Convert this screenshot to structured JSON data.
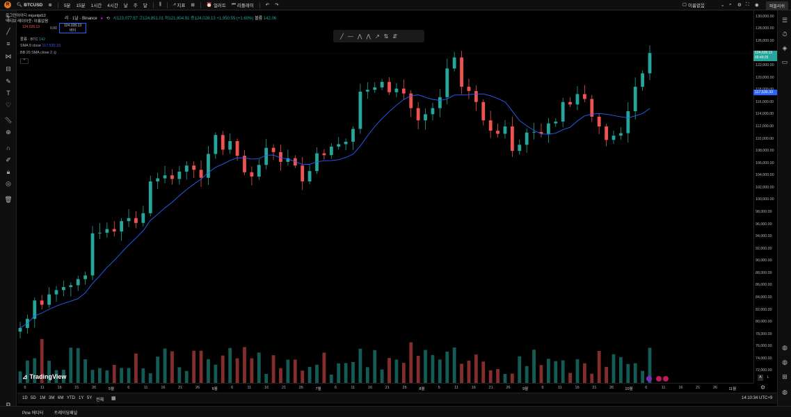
{
  "header": {
    "symbol": "BTCUSD",
    "intervals": [
      "5분",
      "15분",
      "1시간",
      "4시간",
      "날",
      "주",
      "달"
    ],
    "indicators_label": "지표",
    "alert_label": "얼러트",
    "replay_label": "리플레이",
    "layout_name": "이름없음",
    "publish_label": "퍼블리쉬"
  },
  "legend": {
    "line1": "로그인아이디 mijuntjd12",
    "line2": "액티브 레이아웃: 이름없음",
    "price_label": "124,028.13",
    "price_sub": "0.00",
    "price_box": "124,028.13",
    "price_box_sub": "바이"
  },
  "ohlc": {
    "title": "리 · 1날 · Binance",
    "open": "시123,077.57",
    "high": "고124,851.01",
    "low": "저121,804.91",
    "close": "종124,028.13",
    "change": "+1,950.55 (+1.60%)",
    "volume_label": "볼륨",
    "volume": "142.06"
  },
  "indicators": {
    "vol_label": "볼륨 · BTC",
    "vol_value": "142",
    "sma_label": "SMA 9 close",
    "sma_value": "117,530.33",
    "bb_label": "BB 20 SMA close 2"
  },
  "price_axis": {
    "labels": [
      "130,000.00",
      "128,000.00",
      "126,000.00",
      "122,000.00",
      "120,000.00",
      "118,000.00",
      "116,000.00",
      "114,000.00",
      "112,000.00",
      "110,000.00",
      "108,000.00",
      "106,000.00",
      "104,000.00",
      "102,000.00",
      "100,000.00",
      "98,000.00",
      "96,000.00",
      "94,000.00",
      "92,000.00",
      "90,000.00",
      "88,000.00",
      "86,000.00",
      "84,000.00",
      "82,000.00",
      "80,000.00",
      "78,000.00",
      "76,000.00",
      "74,000.00",
      "72,000.00"
    ],
    "last_price": "124,028.13",
    "last_time": "09:49:25",
    "sma_price": "117,530.33"
  },
  "time_axis": {
    "labels": [
      "6",
      "11",
      "16",
      "21",
      "26",
      "5월",
      "6",
      "11",
      "16",
      "21",
      "26",
      "6월",
      "6",
      "11",
      "16",
      "21",
      "26",
      "7월",
      "6",
      "11",
      "16",
      "21",
      "26",
      "8월",
      "6",
      "11",
      "16",
      "21",
      "26",
      "9월",
      "6",
      "11",
      "16",
      "21",
      "26",
      "10월",
      "6",
      "11",
      "16",
      "21",
      "26",
      "11월"
    ]
  },
  "ranges": [
    "1D",
    "5D",
    "1M",
    "3M",
    "6M",
    "YTD",
    "1Y",
    "5Y",
    "전체"
  ],
  "clock": "14:10:34 UTC+9",
  "footer": {
    "tab1": "Pine 에디터",
    "tab2": "트레이딩패널"
  },
  "brand": "TradingView",
  "colors": {
    "up": "#26a69a",
    "down": "#ef5350",
    "sma": "#2962ff"
  },
  "chart_data": {
    "type": "candlestick",
    "ylim": [
      70000,
      131000
    ],
    "close_series": [
      79000,
      80500,
      83500,
      82800,
      84500,
      85200,
      85700,
      86000,
      87000,
      87600,
      94500,
      94600,
      95200,
      94800,
      96500,
      97000,
      96200,
      97800,
      103000,
      103500,
      104000,
      103400,
      104600,
      105600,
      104900,
      103600,
      107500,
      110600,
      108200,
      109600,
      107200,
      104500,
      103800,
      105700,
      108500,
      107800,
      106200,
      106800,
      105600,
      103000,
      104700,
      107600,
      107300,
      108700,
      109100,
      109500,
      111600,
      117700,
      118000,
      118400,
      119300,
      117600,
      118200,
      117400,
      115000,
      113000,
      114000,
      115000,
      116800,
      121500,
      123300,
      118500,
      117800,
      116000,
      113000,
      111300,
      110800,
      112000,
      108000,
      109000,
      111000,
      111100,
      110800,
      112500,
      112800,
      116000,
      115600,
      117300,
      116500,
      113600,
      112000,
      109800,
      110500,
      110900,
      114500,
      118500,
      120700,
      124028
    ],
    "sma9_last": 117530.33
  }
}
